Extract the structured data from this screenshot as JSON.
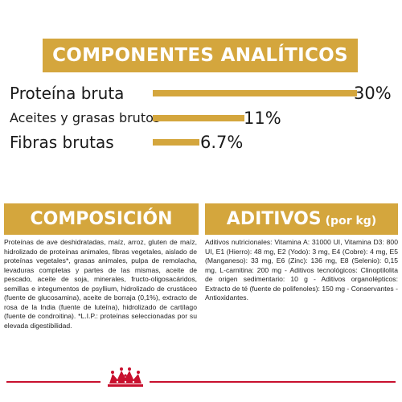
{
  "analytics": {
    "title": "COMPONENTES ANALÍTICOS",
    "rows": [
      {
        "label": "Proteína bruta",
        "value": "30%"
      },
      {
        "label": "Aceites y grasas brutos",
        "value": "11%"
      },
      {
        "label": "Fibras brutas",
        "value": "6.7%"
      }
    ]
  },
  "composition": {
    "title": "COMPOSICIÓN",
    "text": "Proteínas de ave deshidratadas, maíz, arroz, gluten de maíz, hidrolizado de proteínas animales, fibras vegetales, aislado de proteínas vegetales*, grasas animales, pulpa de remolacha, levaduras completas y partes de las mismas, aceite de pescado, aceite de soja, minerales, fructo-oligosacáridos, semillas e integumentos de psyllium, hidrolizado de crustáceo (fuente de glucosamina), aceite de borraja (0,1%), extracto de rosa de la India (fuente de luteína), hidrolizado de cartílago (fuente de condroitina). *L.I.P.: proteínas seleccionadas por su elevada digestibilidad."
  },
  "additives": {
    "title": "ADITIVOS",
    "unit": "(por kg)",
    "text": "Aditivos nutricionales: Vitamina A: 31000 UI, Vitamina D3: 800 UI, E1 (Hierro): 48 mg, E2 (Yodo): 3 mg, E4 (Cobre): 4 mg, E5 (Manganeso): 33 mg, E6 (Zinc): 136 mg, E8 (Selenio): 0,15 mg, L-carnitina: 200 mg - Aditivos tecnológicos: Clinoptilolita de origen sedimentario: 10 g - Aditivos organolépticos: Extracto de té (fuente de polifenoles): 150 mg - Conservantes - Antioxidantes."
  },
  "colors": {
    "accent": "#d4a63d",
    "brand_red": "#c8102e"
  },
  "footer": {
    "logo_icon": "royal-canin-crown-icon"
  }
}
